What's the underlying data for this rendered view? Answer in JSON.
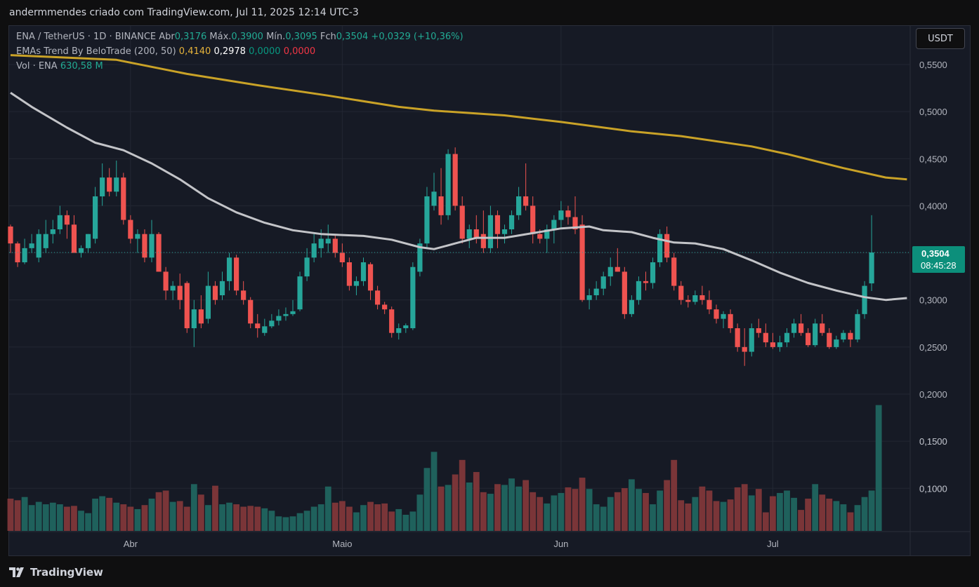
{
  "header": {
    "credit": "andermmendes criado com TradingView.com, Jul 11, 2025 12:14 UTC-3"
  },
  "legend": {
    "symbol_line": {
      "symbol": "ENA / TetherUS · 1D · BINANCE",
      "open_label": "Abr",
      "open_value": "0,3176",
      "high_label": "Máx.",
      "high_value": "0,3900",
      "low_label": "Mín.",
      "low_value": "0,3095",
      "close_label": "Fch",
      "close_value": "0,3504",
      "change": "+0,0329 (+10,36%)"
    },
    "ema_line": {
      "name": "EMAs Trend By BeloTrade (200, 50)",
      "v1": "0,4140",
      "v2": "0,2978",
      "v3": "0,0000",
      "v4": "0,0000"
    },
    "vol_line": {
      "name": "Vol · ENA",
      "value": "630,58 M"
    }
  },
  "toolbar": {
    "currency": "USDT"
  },
  "price_tag": {
    "price": "0,3504",
    "countdown": "08:45:28"
  },
  "footer": {
    "brand": "TradingView"
  },
  "colors": {
    "up": "#26a69a",
    "down": "#ef5350",
    "ema200": "#c9a227",
    "ema50": "#c3c4c8",
    "background": "#161a25"
  },
  "chart_data": {
    "type": "candlestick",
    "y_ticks": [
      "0,5500",
      "0,5000",
      "0,4500",
      "0,4000",
      "0,3500",
      "0,3000",
      "0,2500",
      "0,2000",
      "0,1500",
      "0,1000"
    ],
    "ylim": [
      0.2,
      0.55
    ],
    "x_ticks": [
      {
        "label": "Abr",
        "index": 17
      },
      {
        "label": "Maio",
        "index": 47
      },
      {
        "label": "Jun",
        "index": 78
      },
      {
        "label": "Jul",
        "index": 108
      }
    ],
    "candles": [
      [
        0.378,
        0.38,
        0.35,
        0.36
      ],
      [
        0.36,
        0.362,
        0.335,
        0.34
      ],
      [
        0.34,
        0.365,
        0.338,
        0.355
      ],
      [
        0.355,
        0.37,
        0.35,
        0.36
      ],
      [
        0.345,
        0.375,
        0.34,
        0.37
      ],
      [
        0.355,
        0.385,
        0.35,
        0.37
      ],
      [
        0.37,
        0.385,
        0.36,
        0.375
      ],
      [
        0.375,
        0.4,
        0.37,
        0.39
      ],
      [
        0.39,
        0.395,
        0.365,
        0.38
      ],
      [
        0.38,
        0.39,
        0.35,
        0.35
      ],
      [
        0.35,
        0.358,
        0.345,
        0.355
      ],
      [
        0.355,
        0.37,
        0.35,
        0.37
      ],
      [
        0.365,
        0.42,
        0.36,
        0.41
      ],
      [
        0.41,
        0.445,
        0.4,
        0.43
      ],
      [
        0.43,
        0.44,
        0.41,
        0.415
      ],
      [
        0.415,
        0.448,
        0.41,
        0.43
      ],
      [
        0.43,
        0.435,
        0.38,
        0.385
      ],
      [
        0.385,
        0.39,
        0.36,
        0.365
      ],
      [
        0.365,
        0.375,
        0.35,
        0.37
      ],
      [
        0.37,
        0.375,
        0.34,
        0.345
      ],
      [
        0.345,
        0.385,
        0.34,
        0.37
      ],
      [
        0.37,
        0.372,
        0.33,
        0.33
      ],
      [
        0.33,
        0.335,
        0.3,
        0.31
      ],
      [
        0.31,
        0.32,
        0.3,
        0.315
      ],
      [
        0.315,
        0.328,
        0.29,
        0.3
      ],
      [
        0.318,
        0.32,
        0.265,
        0.27
      ],
      [
        0.27,
        0.3,
        0.25,
        0.29
      ],
      [
        0.29,
        0.305,
        0.27,
        0.275
      ],
      [
        0.28,
        0.33,
        0.275,
        0.315
      ],
      [
        0.315,
        0.32,
        0.295,
        0.3
      ],
      [
        0.305,
        0.33,
        0.3,
        0.32
      ],
      [
        0.32,
        0.35,
        0.31,
        0.345
      ],
      [
        0.345,
        0.348,
        0.305,
        0.31
      ],
      [
        0.31,
        0.32,
        0.295,
        0.3
      ],
      [
        0.3,
        0.303,
        0.27,
        0.275
      ],
      [
        0.275,
        0.285,
        0.26,
        0.27
      ],
      [
        0.265,
        0.28,
        0.262,
        0.272
      ],
      [
        0.272,
        0.285,
        0.27,
        0.278
      ],
      [
        0.278,
        0.29,
        0.273,
        0.283
      ],
      [
        0.283,
        0.292,
        0.278,
        0.285
      ],
      [
        0.285,
        0.3,
        0.283,
        0.288
      ],
      [
        0.29,
        0.33,
        0.288,
        0.325
      ],
      [
        0.325,
        0.355,
        0.32,
        0.345
      ],
      [
        0.345,
        0.37,
        0.34,
        0.36
      ],
      [
        0.355,
        0.375,
        0.345,
        0.365
      ],
      [
        0.36,
        0.38,
        0.35,
        0.365
      ],
      [
        0.365,
        0.37,
        0.345,
        0.35
      ],
      [
        0.35,
        0.36,
        0.335,
        0.34
      ],
      [
        0.34,
        0.345,
        0.31,
        0.315
      ],
      [
        0.315,
        0.325,
        0.305,
        0.32
      ],
      [
        0.32,
        0.345,
        0.315,
        0.34
      ],
      [
        0.338,
        0.34,
        0.3,
        0.31
      ],
      [
        0.31,
        0.315,
        0.29,
        0.295
      ],
      [
        0.295,
        0.298,
        0.285,
        0.29
      ],
      [
        0.29,
        0.293,
        0.26,
        0.265
      ],
      [
        0.265,
        0.275,
        0.258,
        0.27
      ],
      [
        0.27,
        0.275,
        0.265,
        0.273
      ],
      [
        0.27,
        0.34,
        0.268,
        0.335
      ],
      [
        0.33,
        0.365,
        0.325,
        0.36
      ],
      [
        0.36,
        0.42,
        0.355,
        0.41
      ],
      [
        0.4,
        0.435,
        0.395,
        0.415
      ],
      [
        0.41,
        0.44,
        0.38,
        0.39
      ],
      [
        0.39,
        0.46,
        0.385,
        0.455
      ],
      [
        0.455,
        0.462,
        0.395,
        0.4
      ],
      [
        0.4,
        0.41,
        0.36,
        0.365
      ],
      [
        0.365,
        0.38,
        0.355,
        0.375
      ],
      [
        0.375,
        0.39,
        0.36,
        0.365
      ],
      [
        0.37,
        0.395,
        0.35,
        0.355
      ],
      [
        0.355,
        0.4,
        0.35,
        0.39
      ],
      [
        0.39,
        0.395,
        0.355,
        0.37
      ],
      [
        0.37,
        0.38,
        0.36,
        0.375
      ],
      [
        0.375,
        0.395,
        0.37,
        0.39
      ],
      [
        0.39,
        0.42,
        0.385,
        0.41
      ],
      [
        0.41,
        0.445,
        0.395,
        0.4
      ],
      [
        0.4,
        0.41,
        0.36,
        0.37
      ],
      [
        0.37,
        0.375,
        0.36,
        0.365
      ],
      [
        0.365,
        0.38,
        0.35,
        0.375
      ],
      [
        0.375,
        0.39,
        0.36,
        0.385
      ],
      [
        0.385,
        0.405,
        0.375,
        0.395
      ],
      [
        0.395,
        0.4,
        0.38,
        0.388
      ],
      [
        0.388,
        0.41,
        0.37,
        0.375
      ],
      [
        0.38,
        0.39,
        0.298,
        0.3
      ],
      [
        0.3,
        0.312,
        0.29,
        0.305
      ],
      [
        0.305,
        0.32,
        0.3,
        0.312
      ],
      [
        0.312,
        0.33,
        0.305,
        0.325
      ],
      [
        0.325,
        0.345,
        0.315,
        0.335
      ],
      [
        0.335,
        0.355,
        0.33,
        0.33
      ],
      [
        0.33,
        0.335,
        0.28,
        0.285
      ],
      [
        0.285,
        0.305,
        0.282,
        0.3
      ],
      [
        0.3,
        0.325,
        0.295,
        0.32
      ],
      [
        0.32,
        0.33,
        0.31,
        0.318
      ],
      [
        0.318,
        0.345,
        0.312,
        0.34
      ],
      [
        0.34,
        0.375,
        0.335,
        0.37
      ],
      [
        0.37,
        0.378,
        0.34,
        0.345
      ],
      [
        0.345,
        0.35,
        0.31,
        0.315
      ],
      [
        0.315,
        0.32,
        0.295,
        0.3
      ],
      [
        0.3,
        0.305,
        0.292,
        0.298
      ],
      [
        0.298,
        0.31,
        0.295,
        0.305
      ],
      [
        0.305,
        0.315,
        0.295,
        0.3
      ],
      [
        0.3,
        0.31,
        0.285,
        0.29
      ],
      [
        0.29,
        0.295,
        0.275,
        0.28
      ],
      [
        0.28,
        0.288,
        0.27,
        0.285
      ],
      [
        0.285,
        0.29,
        0.265,
        0.27
      ],
      [
        0.27,
        0.275,
        0.245,
        0.25
      ],
      [
        0.25,
        0.27,
        0.23,
        0.245
      ],
      [
        0.245,
        0.275,
        0.24,
        0.27
      ],
      [
        0.27,
        0.28,
        0.26,
        0.265
      ],
      [
        0.265,
        0.275,
        0.25,
        0.255
      ],
      [
        0.255,
        0.265,
        0.248,
        0.25
      ],
      [
        0.25,
        0.262,
        0.245,
        0.255
      ],
      [
        0.255,
        0.27,
        0.25,
        0.265
      ],
      [
        0.265,
        0.28,
        0.26,
        0.275
      ],
      [
        0.275,
        0.285,
        0.262,
        0.265
      ],
      [
        0.265,
        0.27,
        0.25,
        0.252
      ],
      [
        0.252,
        0.28,
        0.25,
        0.275
      ],
      [
        0.275,
        0.285,
        0.262,
        0.265
      ],
      [
        0.265,
        0.27,
        0.248,
        0.25
      ],
      [
        0.25,
        0.262,
        0.248,
        0.258
      ],
      [
        0.258,
        0.268,
        0.255,
        0.265
      ],
      [
        0.265,
        0.268,
        0.25,
        0.258
      ],
      [
        0.258,
        0.29,
        0.255,
        0.285
      ],
      [
        0.285,
        0.32,
        0.28,
        0.315
      ],
      [
        0.3176,
        0.39,
        0.3095,
        0.3504
      ]
    ],
    "volume_relative": [
      0.4,
      0.38,
      0.42,
      0.32,
      0.36,
      0.33,
      0.35,
      0.33,
      0.3,
      0.31,
      0.25,
      0.22,
      0.4,
      0.43,
      0.41,
      0.35,
      0.33,
      0.3,
      0.27,
      0.32,
      0.4,
      0.48,
      0.5,
      0.36,
      0.37,
      0.3,
      0.58,
      0.45,
      0.32,
      0.56,
      0.33,
      0.35,
      0.33,
      0.3,
      0.31,
      0.3,
      0.28,
      0.25,
      0.18,
      0.17,
      0.18,
      0.22,
      0.25,
      0.3,
      0.33,
      0.55,
      0.35,
      0.37,
      0.3,
      0.23,
      0.32,
      0.36,
      0.33,
      0.34,
      0.24,
      0.27,
      0.2,
      0.24,
      0.45,
      0.78,
      0.98,
      0.55,
      0.57,
      0.7,
      0.88,
      0.6,
      0.73,
      0.48,
      0.46,
      0.58,
      0.57,
      0.65,
      0.55,
      0.63,
      0.48,
      0.42,
      0.34,
      0.44,
      0.47,
      0.54,
      0.52,
      0.66,
      0.52,
      0.33,
      0.3,
      0.42,
      0.48,
      0.53,
      0.64,
      0.52,
      0.47,
      0.33,
      0.5,
      0.63,
      0.88,
      0.38,
      0.34,
      0.42,
      0.55,
      0.5,
      0.37,
      0.36,
      0.39,
      0.54,
      0.58,
      0.44,
      0.52,
      0.23,
      0.43,
      0.47,
      0.5,
      0.41,
      0.26,
      0.4,
      0.58,
      0.45,
      0.4,
      0.37,
      0.33,
      0.23,
      0.32,
      0.42,
      0.5,
      1.56
    ],
    "volume_ticks": [
      "0,1500",
      "0,1000"
    ],
    "ema200_points": [
      [
        0,
        0.56
      ],
      [
        15,
        0.555
      ],
      [
        25,
        0.54
      ],
      [
        35,
        0.528
      ],
      [
        45,
        0.517
      ],
      [
        55,
        0.505
      ],
      [
        60,
        0.501
      ],
      [
        70,
        0.496
      ],
      [
        78,
        0.489
      ],
      [
        88,
        0.479
      ],
      [
        95,
        0.474
      ],
      [
        105,
        0.463
      ],
      [
        110,
        0.455
      ],
      [
        118,
        0.44
      ],
      [
        124,
        0.43
      ],
      [
        127,
        0.428
      ]
    ],
    "ema50_points": [
      [
        0,
        0.52
      ],
      [
        3,
        0.505
      ],
      [
        8,
        0.483
      ],
      [
        12,
        0.467
      ],
      [
        16,
        0.459
      ],
      [
        20,
        0.445
      ],
      [
        24,
        0.428
      ],
      [
        28,
        0.408
      ],
      [
        32,
        0.393
      ],
      [
        36,
        0.382
      ],
      [
        40,
        0.374
      ],
      [
        44,
        0.37
      ],
      [
        47,
        0.369
      ],
      [
        50,
        0.368
      ],
      [
        54,
        0.364
      ],
      [
        58,
        0.356
      ],
      [
        60,
        0.354
      ],
      [
        63,
        0.36
      ],
      [
        66,
        0.366
      ],
      [
        70,
        0.366
      ],
      [
        74,
        0.371
      ],
      [
        78,
        0.376
      ],
      [
        82,
        0.378
      ],
      [
        84,
        0.374
      ],
      [
        88,
        0.372
      ],
      [
        91,
        0.366
      ],
      [
        94,
        0.361
      ],
      [
        97,
        0.36
      ],
      [
        101,
        0.354
      ],
      [
        105,
        0.342
      ],
      [
        109,
        0.329
      ],
      [
        113,
        0.318
      ],
      [
        117,
        0.31
      ],
      [
        121,
        0.303
      ],
      [
        124,
        0.3
      ],
      [
        127,
        0.302
      ]
    ]
  }
}
